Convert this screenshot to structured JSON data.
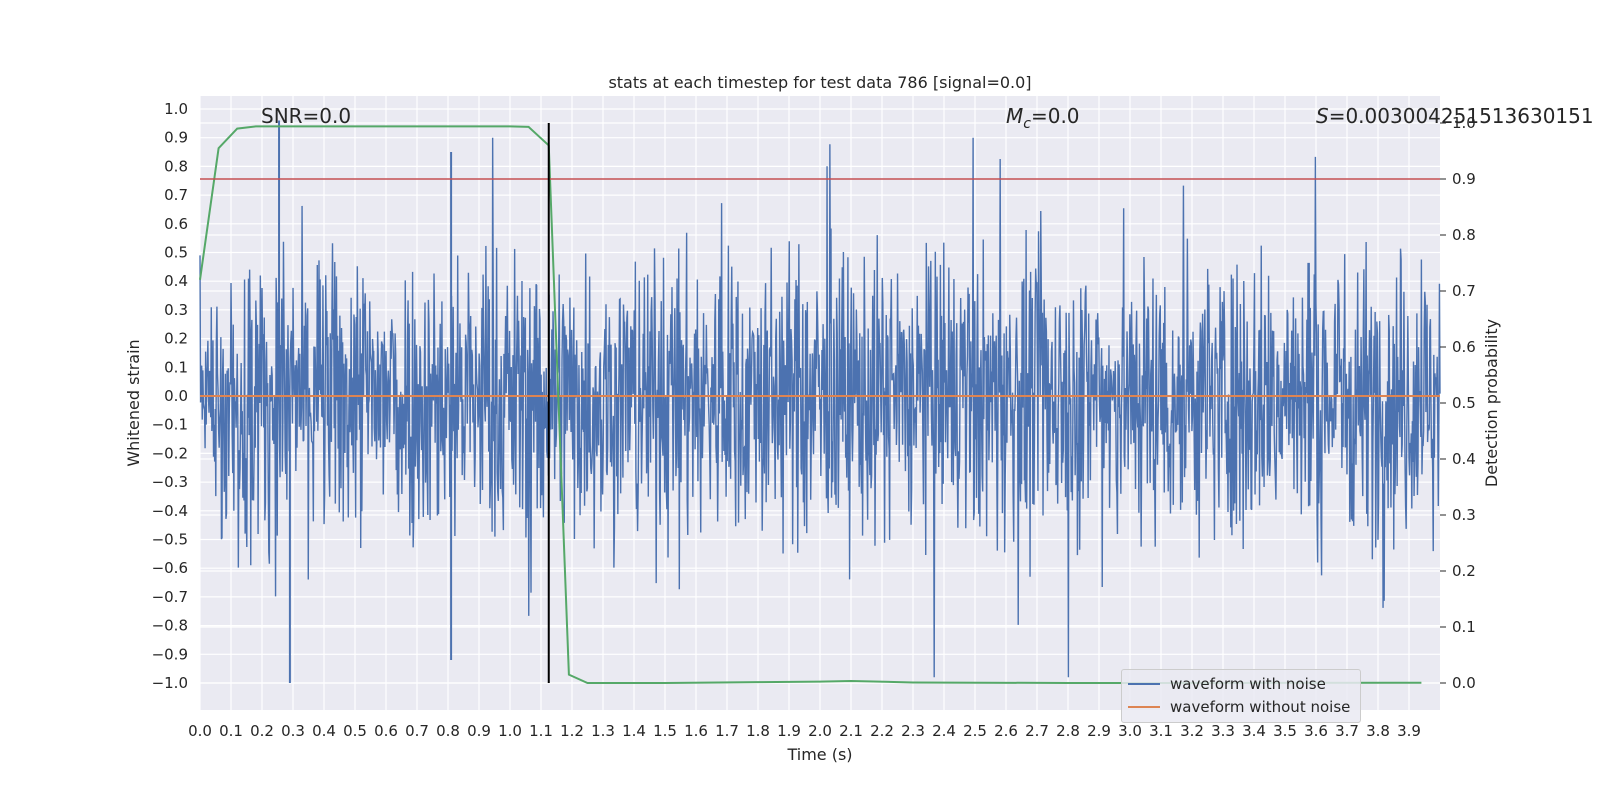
{
  "chart_data": {
    "type": "line",
    "title": "stats at each timestep for test data 786 [signal=0.0]",
    "xlabel": "Time (s)",
    "ylabel": "Whitened strain",
    "ylabel_right": "Detection probability",
    "xlim": [
      0.0,
      4.0
    ],
    "ylim": [
      -1.1,
      1.1
    ],
    "ylim_right": [
      -0.05,
      1.0
    ],
    "x_ticks": [
      "0.0",
      "0.1",
      "0.2",
      "0.3",
      "0.4",
      "0.5",
      "0.6",
      "0.7",
      "0.8",
      "0.9",
      "1.0",
      "1.1",
      "1.2",
      "1.3",
      "1.4",
      "1.5",
      "1.6",
      "1.7",
      "1.8",
      "1.9",
      "2.0",
      "2.1",
      "2.2",
      "2.3",
      "2.4",
      "2.5",
      "2.6",
      "2.7",
      "2.8",
      "2.9",
      "3.0",
      "3.1",
      "3.2",
      "3.3",
      "3.4",
      "3.5",
      "3.6",
      "3.7",
      "3.8",
      "3.9"
    ],
    "y_ticks": [
      "1.0",
      "0.9",
      "0.8",
      "0.7",
      "0.6",
      "0.5",
      "0.4",
      "0.3",
      "0.2",
      "0.1",
      "0.0",
      "−0.1",
      "−0.2",
      "−0.3",
      "−0.4",
      "−0.5",
      "−0.6",
      "−0.7",
      "−0.8",
      "−0.9",
      "−1.0"
    ],
    "y_ticks_right": [
      "1.0",
      "0.9",
      "0.8",
      "0.7",
      "0.6",
      "0.5",
      "0.4",
      "0.3",
      "0.2",
      "0.1",
      "0.0"
    ],
    "grid": true,
    "legend_placement": "lower-right",
    "annotations": {
      "snr": "SNR=0.0",
      "mc_symbol": "M",
      "mc_sub": "c",
      "mc_value": "=0.0",
      "s_symbol": "S",
      "s_value": "=0.003004251513630151"
    },
    "series": [
      {
        "name": "waveform with noise",
        "color": "#4c72b0",
        "axis": "left",
        "description_values": "dense noise roughly within [-1.0, 1.0]",
        "peaks": [
          {
            "x": 0.255,
            "y": 0.96
          },
          {
            "x": 0.29,
            "y": -1.0
          },
          {
            "x": 0.81,
            "y": 0.85
          },
          {
            "x": 0.81,
            "y": -0.92
          }
        ]
      },
      {
        "name": "waveform without noise",
        "color": "#dd8452",
        "axis": "left",
        "x": [
          0.0,
          4.0
        ],
        "y": [
          0.0,
          0.0
        ]
      },
      {
        "name": "",
        "color": "#55a868",
        "axis": "right",
        "x": [
          0.0,
          0.06,
          0.12,
          0.18,
          0.3,
          0.5,
          0.8,
          1.0,
          1.06,
          1.125,
          1.19,
          1.25,
          1.5,
          1.8,
          2.0,
          2.1,
          2.3,
          2.8,
          3.3,
          3.94
        ],
        "y": [
          0.72,
          0.955,
          0.99,
          0.994,
          0.994,
          0.994,
          0.994,
          0.994,
          0.993,
          0.96,
          0.015,
          0.0,
          0.0,
          0.0015,
          0.0025,
          0.0035,
          0.001,
          0.0,
          0.0,
          0.0005
        ]
      }
    ],
    "threshold_right": 0.9,
    "threshold_color": "#c44e52",
    "vline_x": 1.125,
    "vline_color": "#000000"
  },
  "legend": {
    "items": [
      {
        "label": "waveform with noise",
        "color": "#4c72b0"
      },
      {
        "label": "waveform without noise",
        "color": "#dd8452"
      }
    ]
  }
}
